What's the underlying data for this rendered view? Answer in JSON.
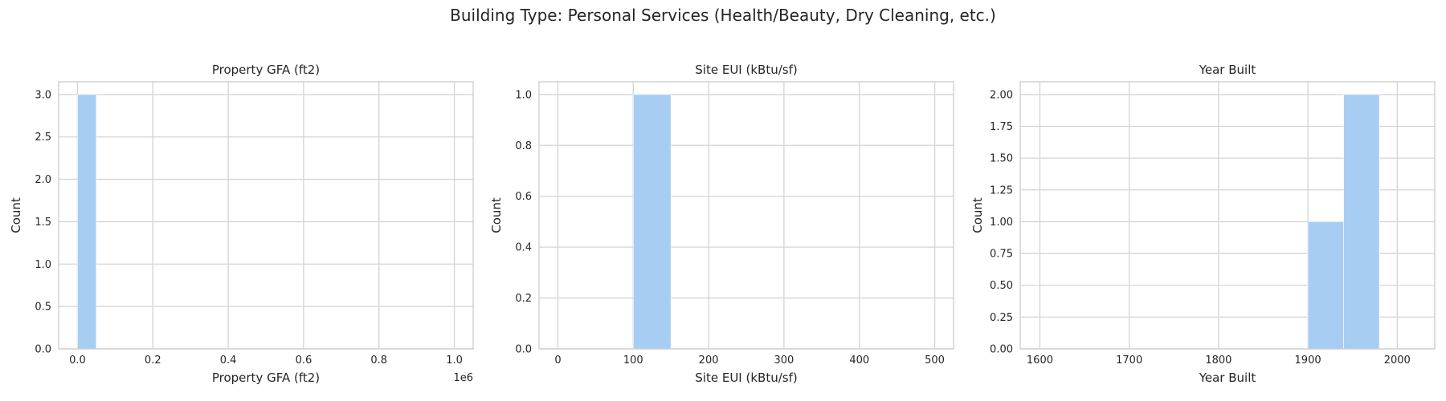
{
  "figure": {
    "suptitle": "Building Type: Personal Services (Health/Beauty, Dry Cleaning, etc.)"
  },
  "colors": {
    "bar": "#a8cdf2",
    "grid": "#d4d4d4",
    "spine": "#cccccc",
    "text": "#262626"
  },
  "chart_data": [
    {
      "type": "bar",
      "subtype": "histogram",
      "title": "Property GFA (ft2)",
      "xlabel": "Property GFA (ft2)",
      "ylabel": "Count",
      "x_offset_text": "1e6",
      "xlim": [
        -50000,
        1050000
      ],
      "ylim": [
        0,
        3.15
      ],
      "xticks": [
        0,
        200000,
        400000,
        600000,
        800000,
        1000000
      ],
      "xtick_labels": [
        "0.0",
        "0.2",
        "0.4",
        "0.6",
        "0.8",
        "1.0"
      ],
      "yticks": [
        0,
        0.5,
        1.0,
        1.5,
        2.0,
        2.5,
        3.0
      ],
      "ytick_labels": [
        "0.0",
        "0.5",
        "1.0",
        "1.5",
        "2.0",
        "2.5",
        "3.0"
      ],
      "bins": [
        {
          "x0": 0,
          "x1": 50000,
          "count": 3
        }
      ],
      "grid": true
    },
    {
      "type": "bar",
      "subtype": "histogram",
      "title": "Site EUI (kBtu/sf)",
      "xlabel": "Site EUI (kBtu/sf)",
      "ylabel": "Count",
      "xlim": [
        -25,
        525
      ],
      "ylim": [
        0,
        1.05
      ],
      "xticks": [
        0,
        100,
        200,
        300,
        400,
        500
      ],
      "xtick_labels": [
        "0",
        "100",
        "200",
        "300",
        "400",
        "500"
      ],
      "yticks": [
        0,
        0.2,
        0.4,
        0.6,
        0.8,
        1.0
      ],
      "ytick_labels": [
        "0.0",
        "0.2",
        "0.4",
        "0.6",
        "0.8",
        "1.0"
      ],
      "bins": [
        {
          "x0": 100,
          "x1": 150,
          "count": 1
        }
      ],
      "grid": true
    },
    {
      "type": "bar",
      "subtype": "histogram",
      "title": "Year Built",
      "xlabel": "Year Built",
      "ylabel": "Count",
      "xlim": [
        1578,
        2042
      ],
      "ylim": [
        0,
        2.1
      ],
      "xticks": [
        1600,
        1700,
        1800,
        1900,
        2000
      ],
      "xtick_labels": [
        "1600",
        "1700",
        "1800",
        "1900",
        "2000"
      ],
      "yticks": [
        0,
        0.25,
        0.5,
        0.75,
        1.0,
        1.25,
        1.5,
        1.75,
        2.0
      ],
      "ytick_labels": [
        "0.00",
        "0.25",
        "0.50",
        "0.75",
        "1.00",
        "1.25",
        "1.50",
        "1.75",
        "2.00"
      ],
      "bins": [
        {
          "x0": 1900,
          "x1": 1940,
          "count": 1
        },
        {
          "x0": 1940,
          "x1": 1980,
          "count": 2
        }
      ],
      "grid": true
    }
  ]
}
